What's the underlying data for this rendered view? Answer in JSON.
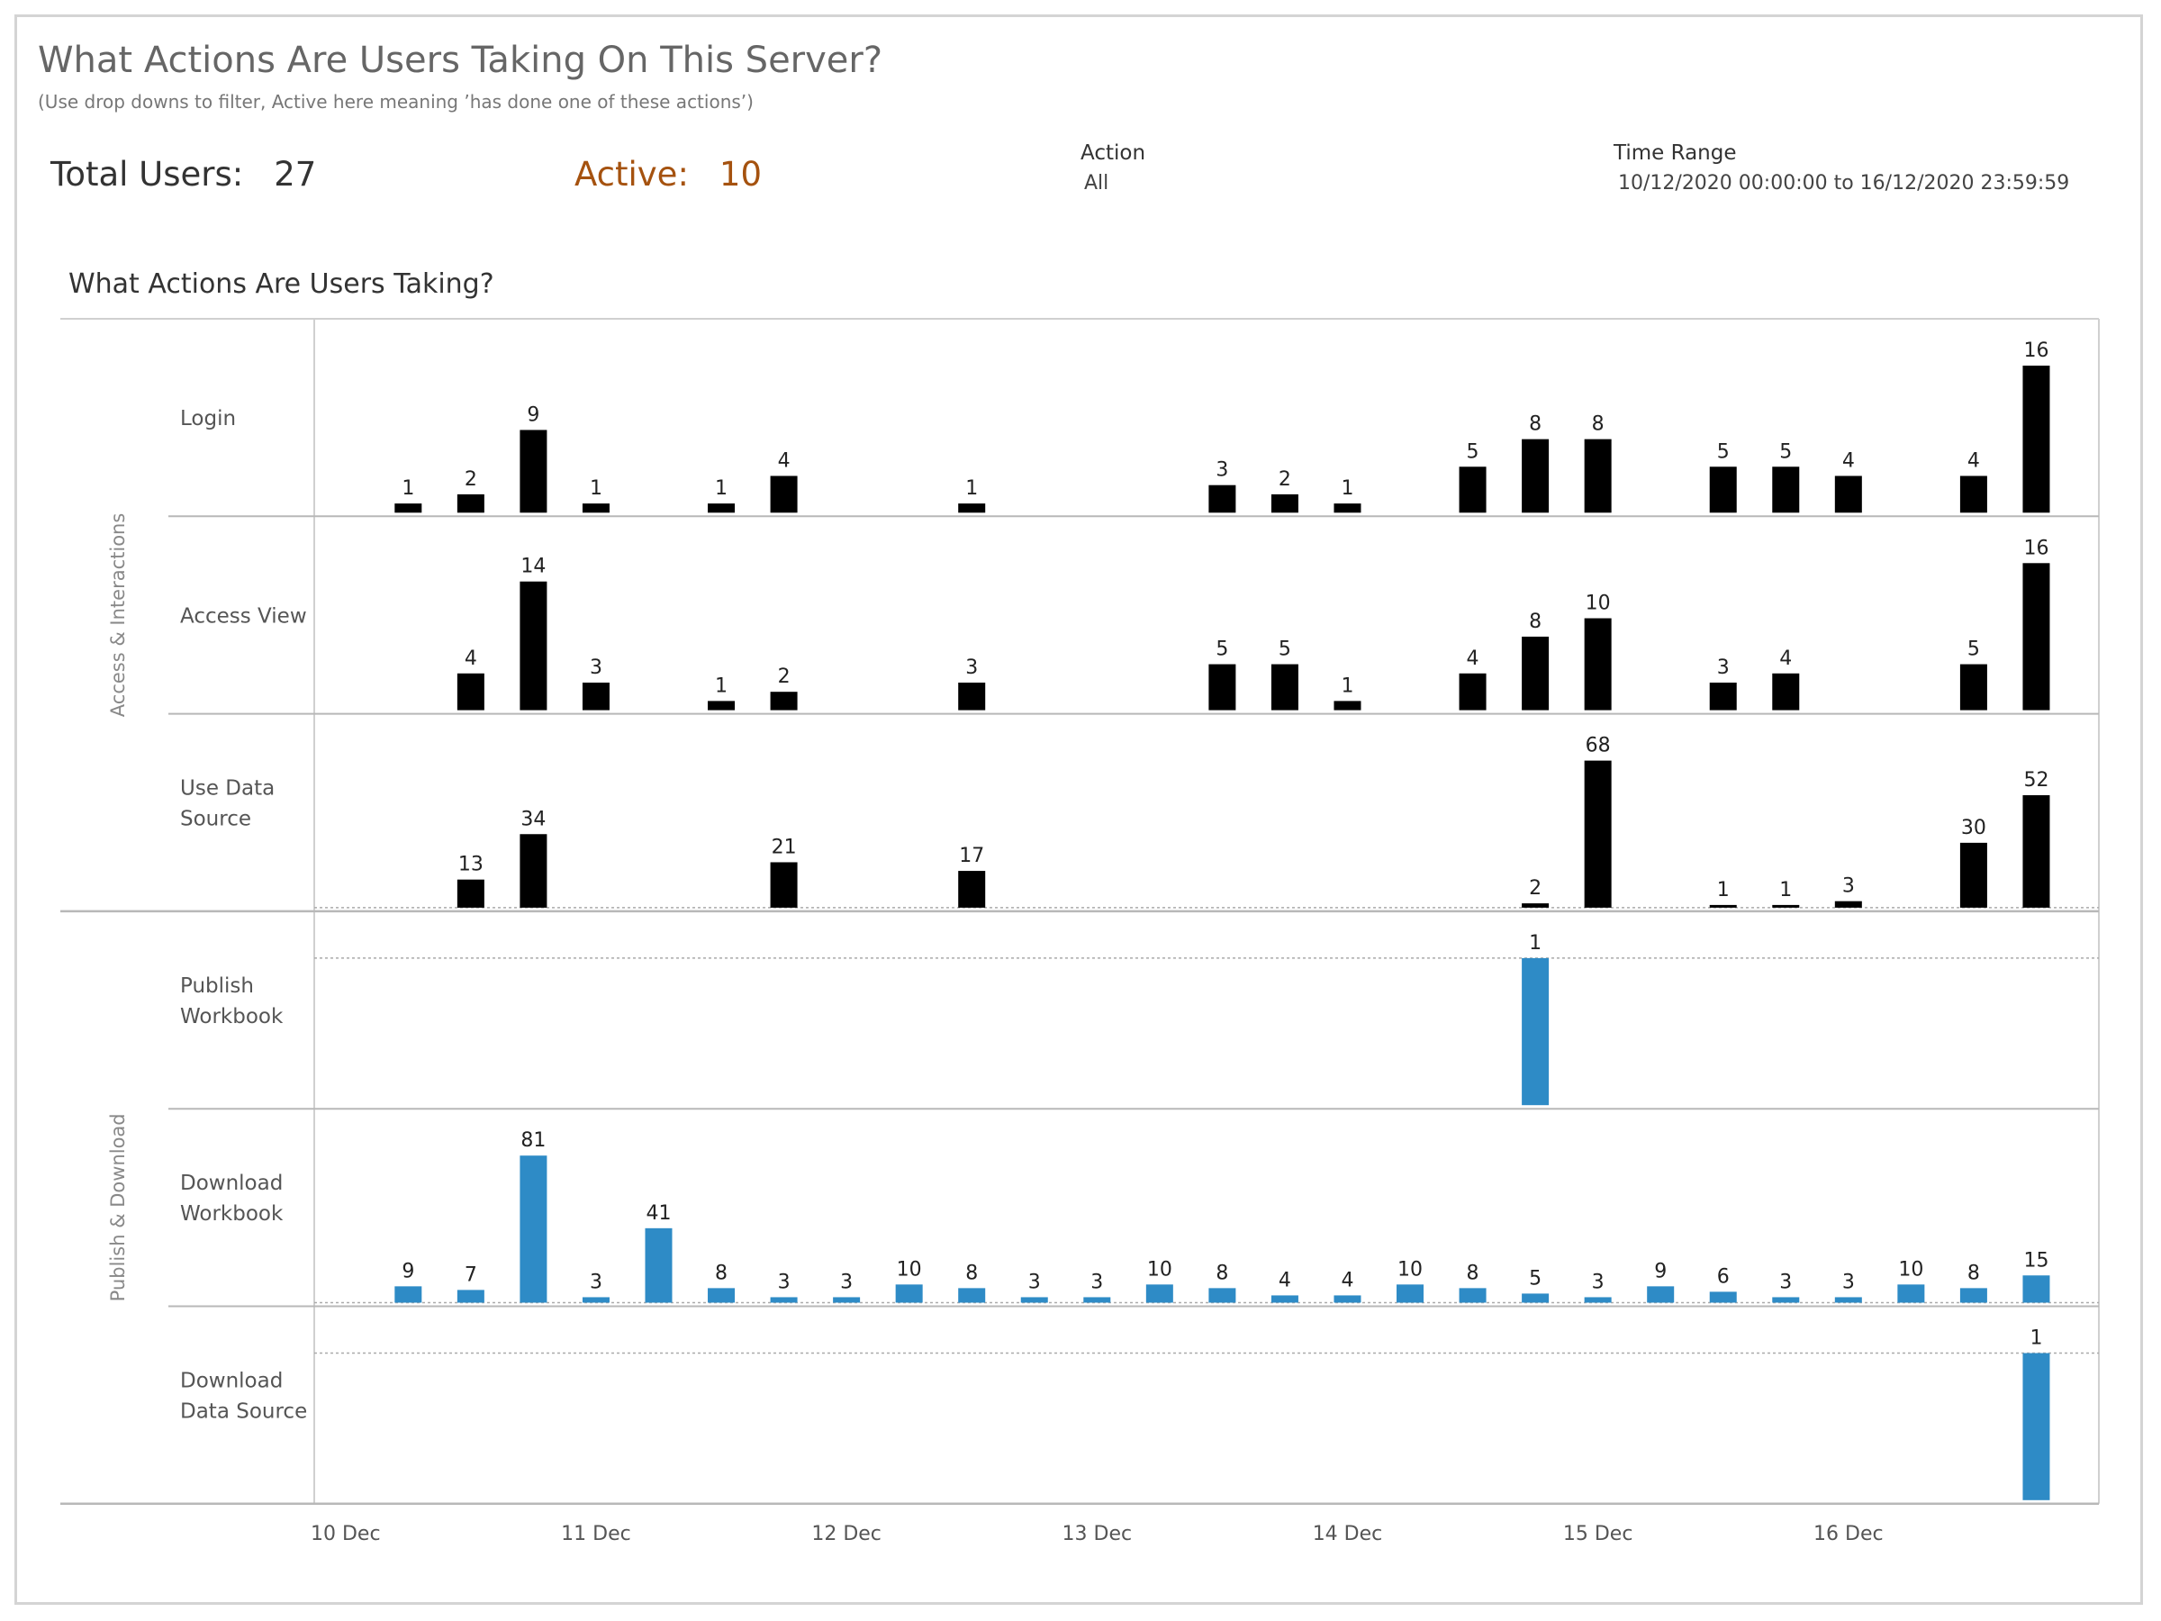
{
  "header": {
    "title": "What Actions Are Users Taking On This Server?",
    "subtitle": "(Use drop downs to filter, Active here meaning ’has done one of these actions’)"
  },
  "kpis": {
    "total_label": "Total Users:",
    "total_value": "27",
    "active_label": "Active:",
    "active_value": "10"
  },
  "filters": {
    "action": {
      "label": "Action",
      "value": "All"
    },
    "time_range": {
      "label": "Time Range",
      "value": "10/12/2020 00:00:00 to 16/12/2020 23:59:59"
    }
  },
  "section_title": "What Actions Are Users Taking?",
  "colors": {
    "access": "#000000",
    "publish": "#2e8bc6",
    "kpi_active": "#a5520f"
  },
  "chart_data": {
    "type": "bar",
    "x_ticks": [
      "10 Dec",
      "11 Dec",
      "12 Dec",
      "13 Dec",
      "14 Dec",
      "15 Dec",
      "16 Dec"
    ],
    "x_domain": [
      0,
      28.5
    ],
    "groups": [
      {
        "name": "Access & Interactions",
        "color": "#000000",
        "rows": [
          "Login",
          "Access View",
          "Use Data Source"
        ]
      },
      {
        "name": "Publish & Download",
        "color": "#2e8bc6",
        "rows": [
          "Publish Workbook",
          "Download Workbook",
          "Download Data Source"
        ]
      }
    ],
    "series": [
      {
        "name": "Login",
        "label_lines": [
          "Login"
        ],
        "group": 0,
        "x": [
          1.5,
          2.5,
          3.5,
          4.5,
          6.5,
          7.5,
          10.5,
          14.5,
          15.5,
          16.5,
          18.5,
          19.5,
          20.5,
          22.5,
          23.5,
          24.5,
          26.5,
          27.5
        ],
        "values": [
          1,
          2,
          9,
          1,
          1,
          4,
          1,
          3,
          2,
          1,
          5,
          8,
          8,
          5,
          5,
          4,
          4,
          16
        ]
      },
      {
        "name": "Access View",
        "label_lines": [
          "Access View"
        ],
        "group": 0,
        "x": [
          2.5,
          3.5,
          4.5,
          6.5,
          7.5,
          10.5,
          14.5,
          15.5,
          16.5,
          18.5,
          19.5,
          20.5,
          22.5,
          23.5,
          26.5,
          27.5
        ],
        "values": [
          4,
          14,
          3,
          1,
          2,
          3,
          5,
          5,
          1,
          4,
          8,
          10,
          3,
          4,
          5,
          16
        ]
      },
      {
        "name": "Use Data Source",
        "label_lines": [
          "Use Data",
          "Source"
        ],
        "group": 0,
        "x": [
          2.5,
          3.5,
          7.5,
          10.5,
          19.5,
          20.5,
          22.5,
          23.5,
          24.5,
          26.5,
          27.5
        ],
        "values": [
          13,
          34,
          21,
          17,
          2,
          68,
          1,
          1,
          3,
          30,
          52
        ]
      },
      {
        "name": "Publish Workbook",
        "label_lines": [
          "Publish",
          "Workbook"
        ],
        "group": 1,
        "x": [
          19.5
        ],
        "values": [
          1
        ]
      },
      {
        "name": "Download Workbook",
        "label_lines": [
          "Download",
          "Workbook"
        ],
        "group": 1,
        "x": [
          1.5,
          2.5,
          3.5,
          4.5,
          5.5,
          6.5,
          7.5,
          8.5,
          9.5,
          10.5,
          11.5,
          12.5,
          13.5,
          14.5,
          15.5,
          16.5,
          17.5,
          18.5,
          19.5,
          20.5,
          21.5,
          22.5,
          23.5,
          24.5,
          25.5,
          26.5,
          27.5
        ],
        "values": [
          9,
          7,
          81,
          3,
          41,
          8,
          3,
          3,
          10,
          8,
          3,
          3,
          10,
          8,
          4,
          4,
          10,
          8,
          5,
          3,
          9,
          6,
          3,
          3,
          10,
          8,
          15
        ]
      },
      {
        "name": "Download Data Source",
        "label_lines": [
          "Download",
          "Data Source"
        ],
        "group": 1,
        "x": [
          27.5
        ],
        "values": [
          1
        ]
      }
    ]
  }
}
